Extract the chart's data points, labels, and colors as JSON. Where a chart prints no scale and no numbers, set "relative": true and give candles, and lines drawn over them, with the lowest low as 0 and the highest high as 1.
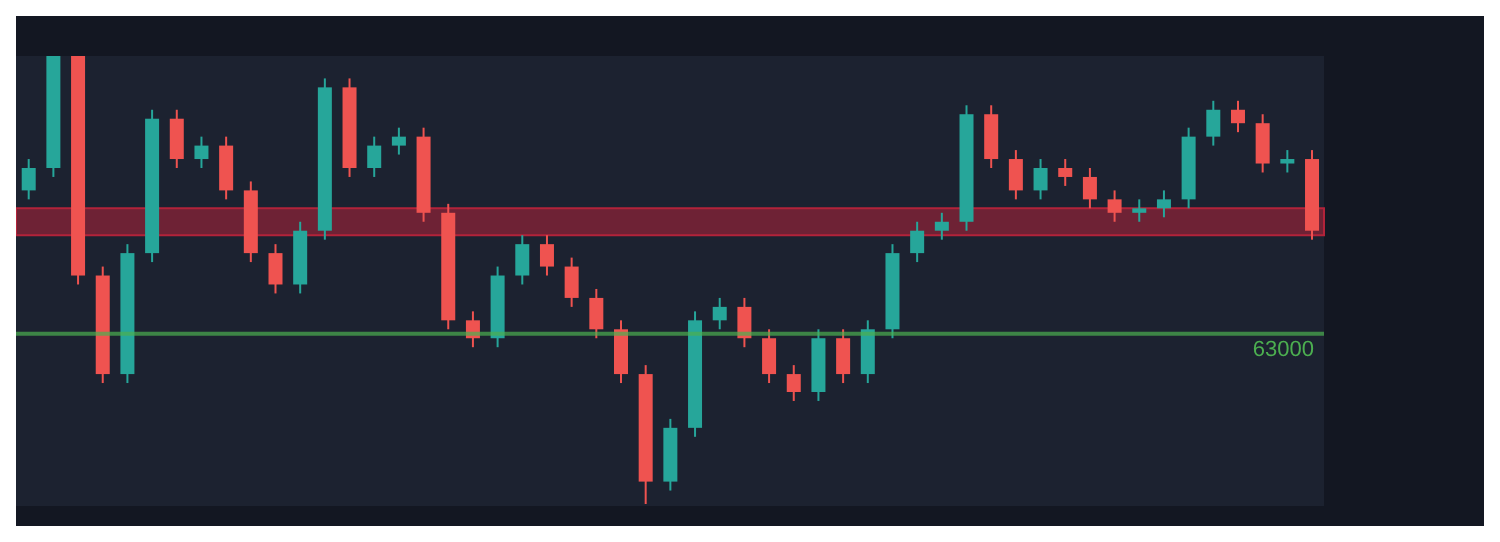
{
  "chart_data": {
    "type": "candlestick",
    "relative": true,
    "annotations": [
      "63000"
    ],
    "categories": [
      null,
      null,
      null,
      null,
      null,
      null,
      null,
      null,
      null,
      null,
      null,
      null,
      null,
      null,
      null,
      null,
      null,
      null,
      null,
      null,
      null,
      null,
      null,
      null,
      null,
      null,
      null,
      null,
      null,
      null,
      null,
      null,
      null,
      null,
      null,
      null,
      null,
      null,
      null,
      null,
      null,
      null,
      null,
      null,
      null,
      null,
      null,
      null,
      null,
      null,
      null,
      null,
      null
    ],
    "ohlc": [
      [
        0.7,
        0.77,
        0.68,
        0.75
      ],
      [
        0.75,
        1.0,
        0.73,
        1.0
      ],
      [
        1.0,
        1.0,
        0.49,
        0.51
      ],
      [
        0.51,
        0.53,
        0.27,
        0.29
      ],
      [
        0.29,
        0.58,
        0.27,
        0.56
      ],
      [
        0.56,
        0.88,
        0.54,
        0.86
      ],
      [
        0.86,
        0.88,
        0.75,
        0.77
      ],
      [
        0.77,
        0.82,
        0.75,
        0.8
      ],
      [
        0.8,
        0.82,
        0.68,
        0.7
      ],
      [
        0.7,
        0.72,
        0.54,
        0.56
      ],
      [
        0.56,
        0.58,
        0.47,
        0.49
      ],
      [
        0.49,
        0.63,
        0.47,
        0.61
      ],
      [
        0.61,
        0.95,
        0.59,
        0.93
      ],
      [
        0.93,
        0.95,
        0.73,
        0.75
      ],
      [
        0.75,
        0.82,
        0.73,
        0.8
      ],
      [
        0.8,
        0.84,
        0.78,
        0.82
      ],
      [
        0.82,
        0.84,
        0.63,
        0.65
      ],
      [
        0.65,
        0.67,
        0.39,
        0.41
      ],
      [
        0.41,
        0.43,
        0.35,
        0.37
      ],
      [
        0.37,
        0.53,
        0.35,
        0.51
      ],
      [
        0.51,
        0.6,
        0.49,
        0.58
      ],
      [
        0.58,
        0.6,
        0.51,
        0.53
      ],
      [
        0.53,
        0.55,
        0.44,
        0.46
      ],
      [
        0.46,
        0.48,
        0.37,
        0.39
      ],
      [
        0.39,
        0.41,
        0.27,
        0.29
      ],
      [
        0.29,
        0.31,
        0.0,
        0.05
      ],
      [
        0.05,
        0.19,
        0.03,
        0.17
      ],
      [
        0.17,
        0.43,
        0.15,
        0.41
      ],
      [
        0.41,
        0.46,
        0.39,
        0.44
      ],
      [
        0.44,
        0.46,
        0.35,
        0.37
      ],
      [
        0.37,
        0.39,
        0.27,
        0.29
      ],
      [
        0.29,
        0.31,
        0.23,
        0.25
      ],
      [
        0.25,
        0.39,
        0.23,
        0.37
      ],
      [
        0.37,
        0.39,
        0.27,
        0.29
      ],
      [
        0.29,
        0.41,
        0.27,
        0.39
      ],
      [
        0.39,
        0.58,
        0.37,
        0.56
      ],
      [
        0.56,
        0.63,
        0.54,
        0.61
      ],
      [
        0.61,
        0.65,
        0.59,
        0.63
      ],
      [
        0.63,
        0.89,
        0.61,
        0.87
      ],
      [
        0.87,
        0.89,
        0.75,
        0.77
      ],
      [
        0.77,
        0.79,
        0.68,
        0.7
      ],
      [
        0.7,
        0.77,
        0.68,
        0.75
      ],
      [
        0.75,
        0.77,
        0.71,
        0.73
      ],
      [
        0.73,
        0.75,
        0.66,
        0.68
      ],
      [
        0.68,
        0.7,
        0.63,
        0.65
      ],
      [
        0.65,
        0.68,
        0.63,
        0.66
      ],
      [
        0.66,
        0.7,
        0.64,
        0.68
      ],
      [
        0.68,
        0.84,
        0.66,
        0.82
      ],
      [
        0.82,
        0.9,
        0.8,
        0.88
      ],
      [
        0.88,
        0.9,
        0.83,
        0.85
      ],
      [
        0.85,
        0.87,
        0.74,
        0.76
      ],
      [
        0.76,
        0.79,
        0.74,
        0.77
      ],
      [
        0.77,
        0.79,
        0.59,
        0.61
      ]
    ],
    "colors": [
      "#26a69a",
      "#26a69a",
      "#ef5350",
      "#ef5350",
      "#26a69a",
      "#26a69a",
      "#ef5350",
      "#26a69a",
      "#ef5350",
      "#ef5350",
      "#ef5350",
      "#26a69a",
      "#26a69a",
      "#ef5350",
      "#26a69a",
      "#26a69a",
      "#ef5350",
      "#ef5350",
      "#ef5350",
      "#26a69a",
      "#26a69a",
      "#ef5350",
      "#ef5350",
      "#ef5350",
      "#ef5350",
      "#ef5350",
      "#26a69a",
      "#26a69a",
      "#26a69a",
      "#ef5350",
      "#ef5350",
      "#ef5350",
      "#26a69a",
      "#ef5350",
      "#26a69a",
      "#26a69a",
      "#26a69a",
      "#26a69a",
      "#26a69a",
      "#ef5350",
      "#ef5350",
      "#26a69a",
      "#ef5350",
      "#ef5350",
      "#ef5350",
      "#26a69a",
      "#26a69a",
      "#26a69a",
      "#26a69a",
      "#ef5350",
      "#ef5350",
      "#26a69a",
      "#ef5350"
    ],
    "bands": [
      {
        "axis": "y",
        "from": 0.6,
        "to": 0.66,
        "color": "#b2233a"
      }
    ],
    "ref_lines": [
      {
        "axis": "y",
        "value": 0.38,
        "color": "#4caf50"
      }
    ]
  }
}
